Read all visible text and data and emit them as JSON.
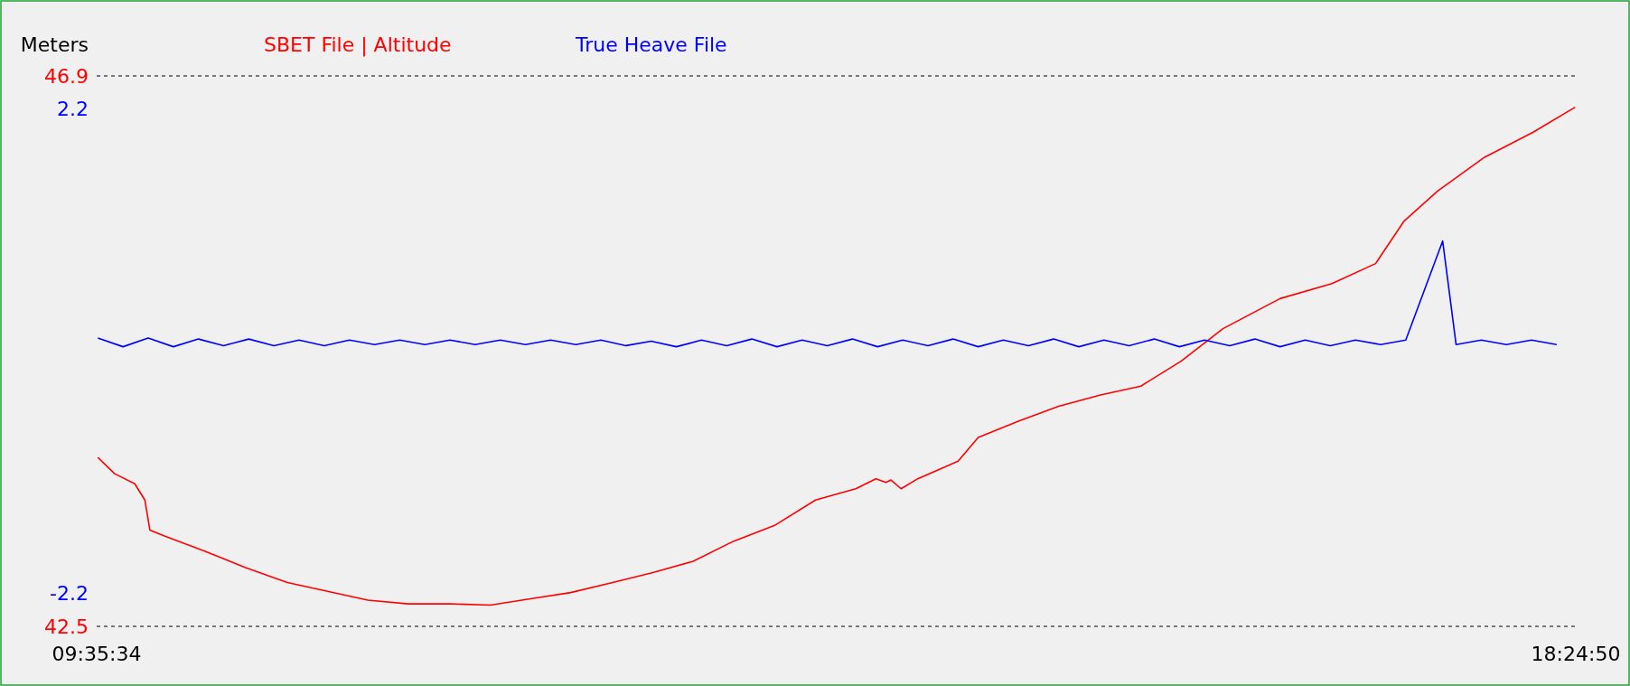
{
  "chart_data": {
    "type": "line",
    "ylabel": "Meters",
    "legend": "top",
    "grid": false,
    "line_style": "solid",
    "marker": "none",
    "xlim": [
      9.5928,
      18.4139
    ],
    "xticks": [
      {
        "value": 9.5928,
        "label": "09:35:34"
      },
      {
        "value": 18.4139,
        "label": "18:24:50"
      }
    ],
    "ylim": [
      42.5,
      46.9
    ],
    "yticks": [
      42.5,
      46.9
    ],
    "y2lim": [
      -2.5,
      2.5
    ],
    "y2ticks": [
      -2.2,
      2.2
    ],
    "series": [
      {
        "name": "SBET File | Altitude",
        "color": "#ff0000",
        "x": [
          9.6,
          9.7,
          9.82,
          9.88,
          9.91,
          10.0,
          10.24,
          10.48,
          10.73,
          10.97,
          11.21,
          11.45,
          11.7,
          11.94,
          12.18,
          12.42,
          12.67,
          12.91,
          13.15,
          13.39,
          13.64,
          13.88,
          14.12,
          14.24,
          14.3,
          14.33,
          14.39,
          14.49,
          14.73,
          14.85,
          15.09,
          15.33,
          15.58,
          15.82,
          16.06,
          16.31,
          16.65,
          16.96,
          17.22,
          17.39,
          17.59,
          17.87,
          18.16,
          18.41
        ],
        "values": [
          43.85,
          43.72,
          43.64,
          43.51,
          43.27,
          43.22,
          43.1,
          42.97,
          42.85,
          42.78,
          42.71,
          42.68,
          42.68,
          42.67,
          42.72,
          42.77,
          42.85,
          42.93,
          43.02,
          43.18,
          43.31,
          43.51,
          43.6,
          43.68,
          43.65,
          43.67,
          43.6,
          43.68,
          43.82,
          44.01,
          44.14,
          44.26,
          44.35,
          44.42,
          44.62,
          44.88,
          45.12,
          45.24,
          45.4,
          45.74,
          45.98,
          46.25,
          46.45,
          46.65
        ]
      },
      {
        "name": "True Heave File",
        "color": "#0000ff",
        "axis": "y2",
        "x": [
          9.6,
          9.75,
          9.9,
          10.05,
          10.2,
          10.35,
          10.5,
          10.65,
          10.8,
          10.95,
          11.1,
          11.25,
          11.4,
          11.55,
          11.7,
          11.85,
          12.0,
          12.15,
          12.3,
          12.45,
          12.6,
          12.75,
          12.9,
          13.05,
          13.2,
          13.35,
          13.5,
          13.65,
          13.8,
          13.95,
          14.1,
          14.25,
          14.4,
          14.55,
          14.7,
          14.85,
          15.0,
          15.15,
          15.3,
          15.45,
          15.6,
          15.75,
          15.9,
          16.05,
          16.2,
          16.35,
          16.5,
          16.65,
          16.8,
          16.95,
          17.1,
          17.25,
          17.4,
          17.62,
          17.7,
          17.85,
          18.0,
          18.15,
          18.3
        ],
        "values": [
          0.12,
          0.04,
          0.12,
          0.04,
          0.11,
          0.05,
          0.11,
          0.05,
          0.1,
          0.05,
          0.1,
          0.06,
          0.1,
          0.06,
          0.1,
          0.06,
          0.1,
          0.06,
          0.1,
          0.06,
          0.1,
          0.05,
          0.09,
          0.04,
          0.1,
          0.05,
          0.11,
          0.04,
          0.1,
          0.05,
          0.11,
          0.04,
          0.1,
          0.05,
          0.11,
          0.04,
          0.1,
          0.05,
          0.11,
          0.04,
          0.1,
          0.05,
          0.11,
          0.04,
          0.1,
          0.05,
          0.11,
          0.04,
          0.1,
          0.05,
          0.1,
          0.06,
          0.1,
          1.0,
          0.06,
          0.1,
          0.06,
          0.1,
          0.06
        ]
      }
    ]
  }
}
